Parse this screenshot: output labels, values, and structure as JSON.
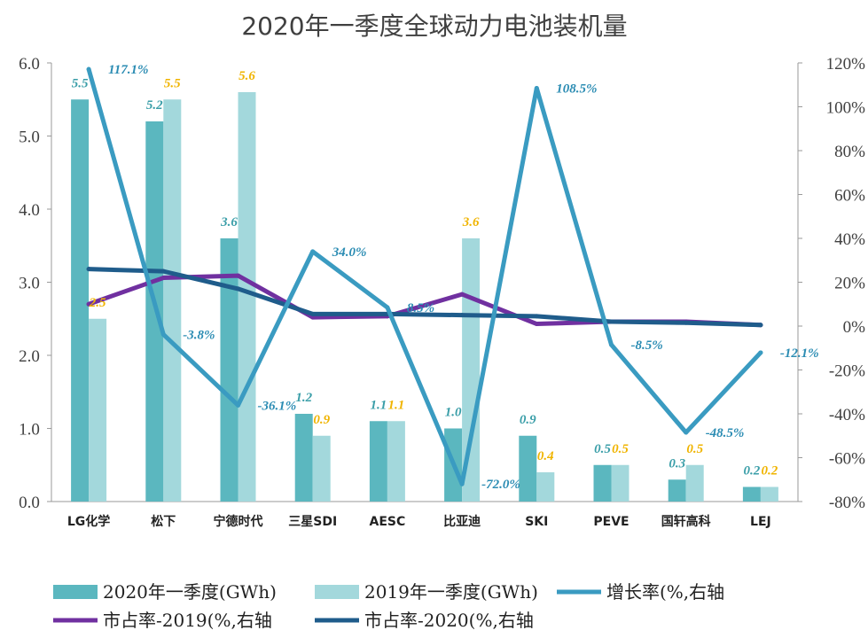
{
  "chart_data": {
    "type": "bar",
    "title": "2020年一季度全球动力电池装机量",
    "categories": [
      "LG化学",
      "松下",
      "宁德时代",
      "三星SDI",
      "AESC",
      "比亚迪",
      "SKI",
      "PEVE",
      "国轩高科",
      "LEJ"
    ],
    "series": [
      {
        "name": "2020年一季度(GWh)",
        "kind": "bar",
        "axis": "left",
        "color": "#5bb7bf",
        "values": [
          5.5,
          5.2,
          3.6,
          1.2,
          1.1,
          1.0,
          0.9,
          0.5,
          0.3,
          0.2
        ],
        "labels": [
          "5.5",
          "5.2",
          "3.6",
          "1.2",
          "1.1",
          "1.0",
          "0.9",
          "0.5",
          "0.3",
          "0.2"
        ]
      },
      {
        "name": "2019年一季度(GWh)",
        "kind": "bar",
        "axis": "left",
        "color": "#a3d8dc",
        "values": [
          2.5,
          5.5,
          5.6,
          0.9,
          1.1,
          3.6,
          0.4,
          0.5,
          0.5,
          0.2
        ],
        "labels": [
          "2.5",
          "5.5",
          "5.6",
          "0.9",
          "1.1",
          "3.6",
          "0.4",
          "0.5",
          "0.5",
          "0.2"
        ]
      },
      {
        "name": "增长率(%,右轴",
        "kind": "line",
        "axis": "right",
        "color": "#3a9bc1",
        "values": [
          117.1,
          -3.8,
          -36.1,
          34.0,
          8.5,
          -72.0,
          108.5,
          -8.5,
          -48.5,
          -12.1
        ],
        "labels": [
          "117.1%",
          "-3.8%",
          "-36.1%",
          "34.0%",
          "8.5%",
          "-72.0%",
          "108.5%",
          "-8.5%",
          "-48.5%",
          "-12.1%"
        ]
      },
      {
        "name": "市占率-2019(%,右轴",
        "kind": "line",
        "axis": "right",
        "color": "#7030a0",
        "values": [
          10,
          22,
          23,
          4,
          4.5,
          14.5,
          1,
          2,
          2,
          0.5
        ]
      },
      {
        "name": "市占率-2020(%,右轴",
        "kind": "line",
        "axis": "right",
        "color": "#1f5c8b",
        "values": [
          26,
          25,
          17,
          5.5,
          5.5,
          5,
          4.5,
          2,
          1.5,
          0.5
        ]
      }
    ],
    "y_left": {
      "range": [
        0,
        6.0
      ],
      "ticks": [
        "0.0",
        "1.0",
        "2.0",
        "3.0",
        "4.0",
        "5.0",
        "6.0"
      ]
    },
    "y_right": {
      "range": [
        -80,
        120
      ],
      "ticks": [
        "-80%",
        "-60%",
        "-40%",
        "-20%",
        "0%",
        "20%",
        "40%",
        "60%",
        "80%",
        "100%",
        "120%"
      ]
    },
    "grid": false,
    "legend_position": "bottom"
  }
}
